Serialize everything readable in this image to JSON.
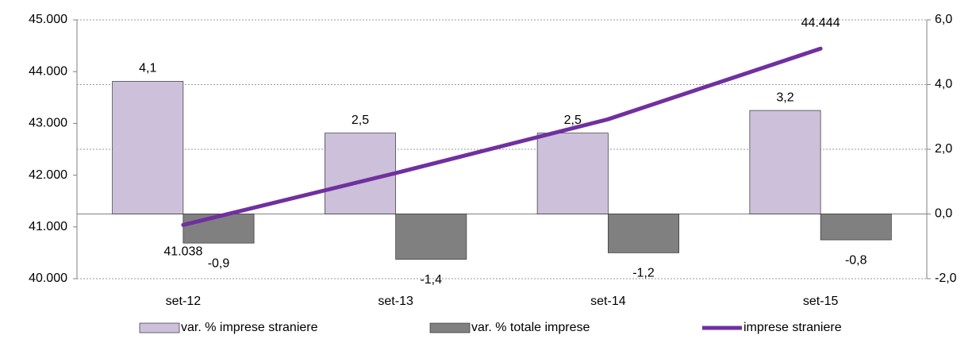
{
  "chart_data": {
    "type": "bar-line",
    "categories": [
      "set-12",
      "set-13",
      "set-14",
      "set-15"
    ],
    "series": [
      {
        "name": "var. % imprese straniere",
        "type": "bar",
        "color": "#ccc0da",
        "axis": "y2",
        "values": [
          4.1,
          2.5,
          2.5,
          3.2
        ],
        "value_labels": [
          "4,1",
          "2,5",
          "2,5",
          "3,2"
        ],
        "label_color": "#000000"
      },
      {
        "name": "var. % totale imprese",
        "type": "bar",
        "color": "#808080",
        "axis": "y2",
        "values": [
          -0.9,
          -1.4,
          -1.2,
          -0.8
        ],
        "value_labels": [
          "-0,9",
          "-1,4",
          "-1,2",
          "-0,8"
        ],
        "label_color": "#ff0000"
      },
      {
        "name": "imprese straniere",
        "type": "line",
        "color": "#7030a0",
        "axis": "y",
        "values": [
          41038,
          42040,
          43080,
          44444
        ],
        "value_labels": [
          "41.038",
          null,
          null,
          "44.444"
        ],
        "label_color": "#7030a0"
      }
    ],
    "ylim": [
      40000,
      45000
    ],
    "yticks": [
      {
        "value": 40000,
        "label": "40.000"
      },
      {
        "value": 41000,
        "label": "41.000"
      },
      {
        "value": 42000,
        "label": "42.000"
      },
      {
        "value": 43000,
        "label": "43.000"
      },
      {
        "value": 44000,
        "label": "44.000"
      },
      {
        "value": 45000,
        "label": "45.000"
      }
    ],
    "y2lim": [
      -2,
      6
    ],
    "y2ticks": [
      {
        "value": -2,
        "label": "-2,0"
      },
      {
        "value": 0,
        "label": "0,0"
      },
      {
        "value": 2,
        "label": "2,0"
      },
      {
        "value": 4,
        "label": "4,0"
      },
      {
        "value": 6,
        "label": "6,0"
      }
    ],
    "grid": "y2",
    "legend": "bottom"
  }
}
